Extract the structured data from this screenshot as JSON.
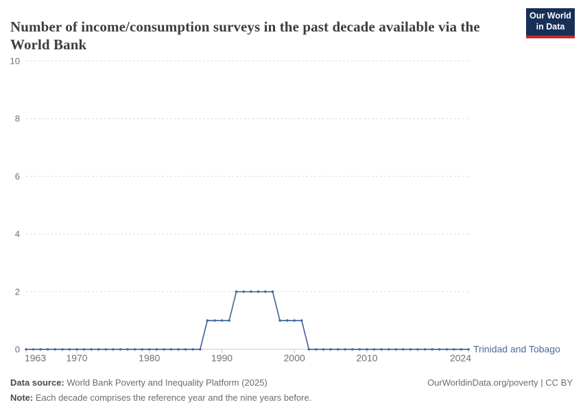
{
  "header": {
    "title": "Number of income/consumption surveys in the past decade available via the World Bank",
    "logo": {
      "line1": "Our World",
      "line2": "in Data",
      "bg_color": "#182f56",
      "bar_color": "#c62d29"
    }
  },
  "chart_data": {
    "type": "line",
    "title": "Number of income/consumption surveys in the past decade available via the World Bank",
    "xlabel": "",
    "ylabel": "",
    "xlim": [
      1963,
      2024
    ],
    "ylim": [
      0,
      10
    ],
    "grid": "horizontal-dashed",
    "legend_position": "end-of-line",
    "xticks": [
      1963,
      1970,
      1980,
      1990,
      2000,
      2010,
      2024
    ],
    "yticks": [
      0,
      2,
      4,
      6,
      8,
      10
    ],
    "colors": {
      "grid": "#dadada",
      "axis": "#c9c9c9",
      "tick_label": "#6e6e6e"
    },
    "series": [
      {
        "name": "Trinidad and Tobago",
        "color": "#46689B",
        "label_color": "#4a6c9d",
        "x": [
          1963,
          1964,
          1965,
          1966,
          1967,
          1968,
          1969,
          1970,
          1971,
          1972,
          1973,
          1974,
          1975,
          1976,
          1977,
          1978,
          1979,
          1980,
          1981,
          1982,
          1983,
          1984,
          1985,
          1986,
          1987,
          1988,
          1989,
          1990,
          1991,
          1992,
          1993,
          1994,
          1995,
          1996,
          1997,
          1998,
          1999,
          2000,
          2001,
          2002,
          2003,
          2004,
          2005,
          2006,
          2007,
          2008,
          2009,
          2010,
          2011,
          2012,
          2013,
          2014,
          2015,
          2016,
          2017,
          2018,
          2019,
          2020,
          2021,
          2022,
          2023,
          2024
        ],
        "values": [
          0,
          0,
          0,
          0,
          0,
          0,
          0,
          0,
          0,
          0,
          0,
          0,
          0,
          0,
          0,
          0,
          0,
          0,
          0,
          0,
          0,
          0,
          0,
          0,
          0,
          1,
          1,
          1,
          1,
          2,
          2,
          2,
          2,
          2,
          2,
          1,
          1,
          1,
          1,
          0,
          0,
          0,
          0,
          0,
          0,
          0,
          0,
          0,
          0,
          0,
          0,
          0,
          0,
          0,
          0,
          0,
          0,
          0,
          0,
          0,
          0,
          0
        ]
      }
    ]
  },
  "footer": {
    "datasource_label": "Data source:",
    "datasource_text": " World Bank Poverty and Inequality Platform (2025)",
    "note_label": "Note:",
    "note_text": " Each decade comprises the reference year and the nine years before.",
    "credit": "OurWorldinData.org/poverty | CC BY"
  }
}
